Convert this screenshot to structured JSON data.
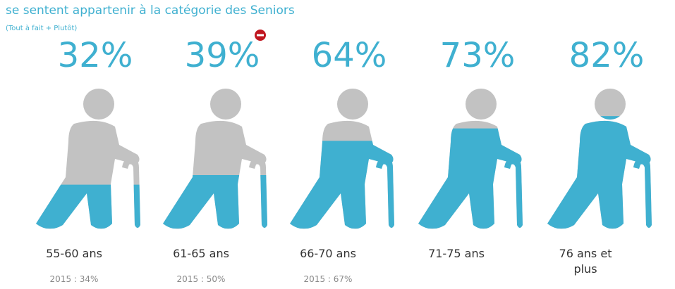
{
  "chart_data": {
    "type": "pictogram",
    "title": "se sentent appartenir à la catégorie des Seniors",
    "subtitle": "(Tout à fait + Plutôt)",
    "categories": [
      "55-60 ans",
      "61-65 ans",
      "66-70 ans",
      "71-75 ans",
      "76 ans et plus"
    ],
    "values": [
      32,
      39,
      64,
      73,
      82
    ],
    "value_labels": [
      "32%",
      "39%",
      "64%",
      "73%",
      "82%"
    ],
    "notes": [
      "2015 : 34%",
      "2015 : 50%",
      "2015 : 67%",
      null,
      null
    ],
    "color": "#3fb0d0",
    "base_color": "#c2c2c2",
    "ylim": [
      0,
      100
    ]
  }
}
